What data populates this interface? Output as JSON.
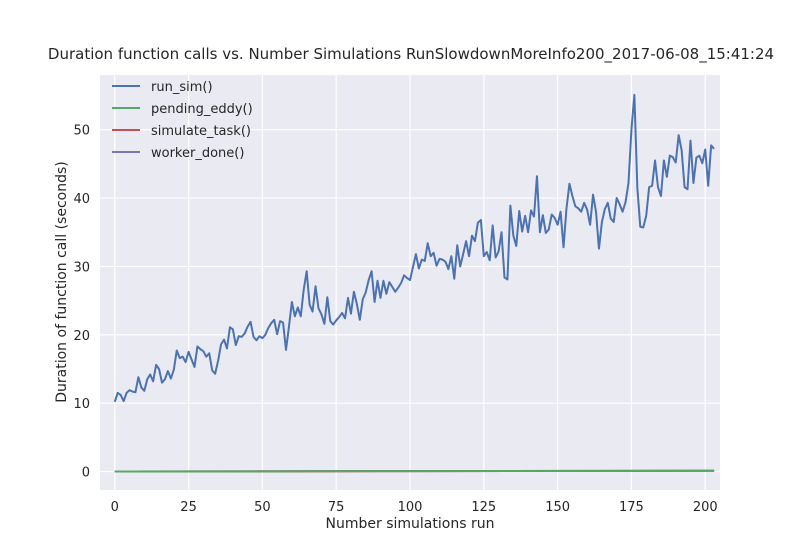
{
  "chart_data": {
    "type": "line",
    "title": "Duration function calls vs. Number Simulations RunSlowdownMoreInfo200_2017-06-08_15:41:24",
    "xlabel": "Number simulations run",
    "ylabel": "Duration of function call (seconds)",
    "xlim": [
      -5,
      205
    ],
    "ylim": [
      -2.7,
      58
    ],
    "xticks": [
      0,
      25,
      50,
      75,
      100,
      125,
      150,
      175,
      200
    ],
    "yticks": [
      0,
      10,
      20,
      30,
      40,
      50
    ],
    "grid": true,
    "legend_position": "top-left",
    "background": "#EAEAF2",
    "series": [
      {
        "name": "run_sim()",
        "color": "#4C72B0",
        "values": [
          10.2,
          11.5,
          11.2,
          10.3,
          11.5,
          11.9,
          11.7,
          11.6,
          13.8,
          12.3,
          11.8,
          13.5,
          14.2,
          13.2,
          15.6,
          15.0,
          13.0,
          13.5,
          14.7,
          13.6,
          14.9,
          17.7,
          16.6,
          16.8,
          16.0,
          17.5,
          16.4,
          15.3,
          18.3,
          17.9,
          17.6,
          16.8,
          17.3,
          14.8,
          14.3,
          16.2,
          18.6,
          19.3,
          18.0,
          21.1,
          20.8,
          18.5,
          19.8,
          19.7,
          20.2,
          21.2,
          21.9,
          19.7,
          19.2,
          19.8,
          19.5,
          20.0,
          21.0,
          21.7,
          22.2,
          20.1,
          22.0,
          21.8,
          17.8,
          21.2,
          24.8,
          22.7,
          24.0,
          22.7,
          26.6,
          29.3,
          24.4,
          23.4,
          27.1,
          23.9,
          23.0,
          21.6,
          25.5,
          22.0,
          21.5,
          22.1,
          22.6,
          23.2,
          22.4,
          25.4,
          23.1,
          26.3,
          24.5,
          22.2,
          25.2,
          26.2,
          28.0,
          29.3,
          24.8,
          27.9,
          25.4,
          27.9,
          26.0,
          27.7,
          27.0,
          26.3,
          26.9,
          27.6,
          28.7,
          28.3,
          28.0,
          29.9,
          31.8,
          29.7,
          31.0,
          30.8,
          33.4,
          31.5,
          32.0,
          30.1,
          31.1,
          31.0,
          30.7,
          29.6,
          31.5,
          28.2,
          33.1,
          30.0,
          31.8,
          33.7,
          31.5,
          34.5,
          33.7,
          36.4,
          36.8,
          31.5,
          32.1,
          30.9,
          36.0,
          31.3,
          32.2,
          35.0,
          28.4,
          28.1,
          38.9,
          34.5,
          33.0,
          38.1,
          35.1,
          37.4,
          35.0,
          38.2,
          37.3,
          43.2,
          35.0,
          37.5,
          34.9,
          35.4,
          37.6,
          37.1,
          36.1,
          38.0,
          32.8,
          38.5,
          42.1,
          40.3,
          38.8,
          38.5,
          38.0,
          39.3,
          38.3,
          36.1,
          40.5,
          38.0,
          32.6,
          36.5,
          38.4,
          39.3,
          37.0,
          36.5,
          40.0,
          39.1,
          38.0,
          39.4,
          42.2,
          50.0,
          55.1,
          41.5,
          35.8,
          35.7,
          37.4,
          41.6,
          41.8,
          45.5,
          41.6,
          40.3,
          45.5,
          43.1,
          46.2,
          46.0,
          45.2,
          49.2,
          47.0,
          41.6,
          41.3,
          48.4,
          42.2,
          45.9,
          46.2,
          45.1,
          47.1,
          41.8,
          47.7,
          47.2
        ]
      },
      {
        "name": "pending_eddy()",
        "color": "#55A868",
        "values": [
          0.0,
          0.06,
          0.12
        ]
      },
      {
        "name": "simulate_task()",
        "color": "#C44E52",
        "values": [
          0.0,
          0.06,
          0.12
        ]
      },
      {
        "name": "worker_done()",
        "color": "#8172B2",
        "values": [
          0.0,
          0.06,
          0.12
        ]
      }
    ]
  }
}
